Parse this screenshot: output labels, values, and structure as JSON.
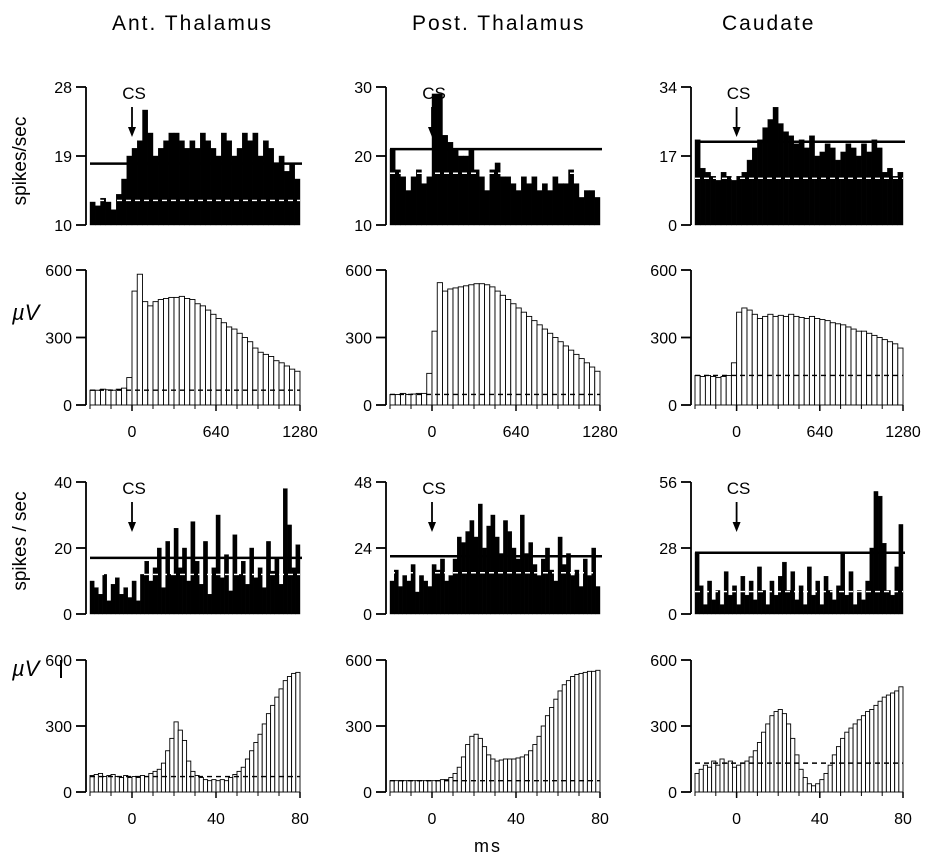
{
  "column_titles": [
    "Ant. Thalamus",
    "Post. Thalamus",
    "Caudate"
  ],
  "row_labels": {
    "spikes": "spikes/sec",
    "spikes2": "spikes / sec",
    "uv": "µV"
  },
  "x_label": "ms",
  "cs_label": "CS",
  "chart_data": [
    {
      "type": "bar",
      "style": "filled",
      "column": "Ant. Thalamus",
      "row": 1,
      "ylabel": "spikes/sec",
      "ylim": [
        10,
        28
      ],
      "yticks": [
        "28",
        "19",
        "10"
      ],
      "xlim": [
        -320,
        1280
      ],
      "xticks": [],
      "cs_at": 0,
      "baseline_solid": 18,
      "baseline_dashed": 13.2,
      "x": [
        -280,
        -240,
        -200,
        -160,
        -120,
        -80,
        -40,
        0,
        40,
        80,
        120,
        160,
        200,
        240,
        280,
        320,
        360,
        400,
        440,
        480,
        520,
        560,
        600,
        640,
        680,
        720,
        760,
        800,
        840,
        880,
        920,
        960,
        1000,
        1040,
        1080,
        1120,
        1160,
        1200,
        1240,
        1280
      ],
      "values": [
        13,
        12.5,
        13.5,
        13,
        12,
        14,
        16,
        19,
        20,
        21,
        25,
        22,
        19,
        20,
        21,
        22,
        22,
        21,
        20,
        21,
        20,
        22,
        21,
        20,
        19,
        22,
        21,
        19,
        20,
        22,
        21,
        22,
        19,
        21,
        20,
        18,
        19,
        17,
        18,
        16
      ]
    },
    {
      "type": "bar",
      "style": "outline",
      "column": "Ant. Thalamus",
      "row": 2,
      "ylabel": "µV",
      "ylim": [
        0,
        640
      ],
      "yticks": [
        "600",
        "300",
        "0"
      ],
      "xlim": [
        -320,
        1280
      ],
      "xticks": [
        "0",
        "640",
        "1280"
      ],
      "baseline_dashed": 70,
      "x": [
        -280,
        -240,
        -200,
        -160,
        -120,
        -80,
        -40,
        0,
        40,
        80,
        120,
        160,
        200,
        240,
        280,
        320,
        360,
        400,
        440,
        480,
        520,
        560,
        600,
        640,
        680,
        720,
        760,
        800,
        840,
        880,
        920,
        960,
        1000,
        1040,
        1080,
        1120,
        1160,
        1200,
        1240,
        1280
      ],
      "values": [
        70,
        70,
        75,
        72,
        70,
        75,
        80,
        130,
        540,
        620,
        490,
        470,
        490,
        500,
        505,
        510,
        510,
        515,
        505,
        500,
        480,
        470,
        450,
        430,
        410,
        390,
        370,
        360,
        340,
        320,
        300,
        270,
        250,
        240,
        230,
        210,
        200,
        185,
        170,
        160
      ]
    },
    {
      "type": "bar",
      "style": "filled",
      "column": "Post. Thalamus",
      "row": 1,
      "ylabel": "",
      "ylim": [
        10,
        30
      ],
      "yticks": [
        "30",
        "20",
        "10"
      ],
      "xlim": [
        -320,
        1280
      ],
      "xticks": [],
      "cs_at": 0,
      "baseline_solid": 21,
      "baseline_dashed": 17.5,
      "x": [
        -280,
        -240,
        -200,
        -160,
        -120,
        -80,
        -40,
        0,
        40,
        80,
        120,
        160,
        200,
        240,
        280,
        320,
        360,
        400,
        440,
        480,
        520,
        560,
        600,
        640,
        680,
        720,
        760,
        800,
        840,
        880,
        920,
        960,
        1000,
        1040,
        1080,
        1120,
        1160,
        1200,
        1240,
        1280
      ],
      "values": [
        21,
        18,
        17,
        15,
        17,
        18,
        16,
        17,
        29,
        29,
        23,
        22,
        21,
        20,
        20,
        21,
        18,
        17,
        15,
        18,
        19,
        17,
        17,
        16,
        15,
        17,
        16,
        17,
        15,
        16,
        15,
        17,
        16,
        16,
        18,
        16,
        14,
        15,
        15,
        14
      ]
    },
    {
      "type": "bar",
      "style": "outline",
      "column": "Post. Thalamus",
      "row": 2,
      "ylabel": "",
      "ylim": [
        0,
        640
      ],
      "yticks": [
        "600",
        "300",
        "0"
      ],
      "xlim": [
        -320,
        1280
      ],
      "xticks": [
        "0",
        "640",
        "1280"
      ],
      "baseline_dashed": 50,
      "x": [
        -280,
        -240,
        -200,
        -160,
        -120,
        -80,
        -40,
        0,
        40,
        80,
        120,
        160,
        200,
        240,
        280,
        320,
        360,
        400,
        440,
        480,
        520,
        560,
        600,
        640,
        680,
        720,
        760,
        800,
        840,
        880,
        920,
        960,
        1000,
        1040,
        1080,
        1120,
        1160,
        1200,
        1240,
        1280
      ],
      "values": [
        50,
        50,
        55,
        50,
        52,
        55,
        55,
        150,
        350,
        580,
        540,
        550,
        555,
        560,
        565,
        570,
        575,
        575,
        570,
        560,
        540,
        520,
        500,
        480,
        460,
        440,
        420,
        400,
        380,
        360,
        340,
        320,
        300,
        280,
        260,
        240,
        220,
        200,
        180,
        160
      ]
    },
    {
      "type": "bar",
      "style": "filled",
      "column": "Caudate",
      "row": 1,
      "ylabel": "",
      "ylim": [
        0,
        34
      ],
      "yticks": [
        "34",
        "17",
        "0"
      ],
      "xlim": [
        -320,
        1280
      ],
      "xticks": [],
      "cs_at": 0,
      "baseline_solid": 20.5,
      "baseline_dashed": 11.5,
      "x": [
        -280,
        -240,
        -200,
        -160,
        -120,
        -80,
        -40,
        0,
        40,
        80,
        120,
        160,
        200,
        240,
        280,
        320,
        360,
        400,
        440,
        480,
        520,
        560,
        600,
        640,
        680,
        720,
        760,
        800,
        840,
        880,
        920,
        960,
        1000,
        1040,
        1080,
        1120,
        1160,
        1200,
        1240,
        1280
      ],
      "values": [
        21,
        14,
        13,
        12,
        11,
        13,
        12,
        11,
        12,
        13,
        16,
        19,
        21,
        24,
        26,
        29,
        25,
        23,
        22,
        20,
        21,
        19,
        22,
        17,
        18,
        20,
        19,
        16,
        18,
        20,
        19,
        17,
        20,
        18,
        21,
        19,
        13,
        14,
        12,
        13
      ]
    },
    {
      "type": "bar",
      "style": "outline",
      "column": "Caudate",
      "row": 2,
      "ylabel": "",
      "ylim": [
        0,
        640
      ],
      "yticks": [
        "600",
        "300",
        "0"
      ],
      "xlim": [
        -320,
        1280
      ],
      "xticks": [
        "0",
        "640",
        "1280"
      ],
      "baseline_dashed": 140,
      "x": [
        -280,
        -240,
        -200,
        -160,
        -120,
        -80,
        -40,
        0,
        40,
        80,
        120,
        160,
        200,
        240,
        280,
        320,
        360,
        400,
        440,
        480,
        520,
        560,
        600,
        640,
        680,
        720,
        760,
        800,
        840,
        880,
        920,
        960,
        1000,
        1040,
        1080,
        1120,
        1160,
        1200,
        1240,
        1280
      ],
      "values": [
        140,
        135,
        140,
        135,
        130,
        135,
        140,
        200,
        440,
        460,
        450,
        430,
        410,
        420,
        430,
        420,
        425,
        420,
        430,
        420,
        415,
        410,
        420,
        410,
        405,
        400,
        390,
        385,
        380,
        370,
        360,
        350,
        350,
        340,
        330,
        320,
        310,
        300,
        290,
        270
      ]
    },
    {
      "type": "bar",
      "style": "filled",
      "column": "Ant. Thalamus",
      "row": 3,
      "ylabel": "spikes / sec",
      "ylim": [
        0,
        40
      ],
      "yticks": [
        "40",
        "20",
        "0"
      ],
      "xlim": [
        -20,
        80
      ],
      "xticks": [],
      "cs_at": 0,
      "baseline_solid": 17,
      "baseline_dashed": 12,
      "x": [
        -19,
        -17,
        -15,
        -13,
        -11,
        -9,
        -7,
        -5,
        -3,
        -1,
        1,
        3,
        5,
        7,
        9,
        11,
        13,
        15,
        17,
        19,
        21,
        23,
        25,
        27,
        29,
        31,
        33,
        35,
        37,
        39,
        41,
        43,
        45,
        47,
        49,
        51,
        53,
        55,
        57,
        59,
        61,
        63,
        65,
        67,
        69,
        71,
        73,
        75,
        77,
        79
      ],
      "values": [
        10,
        8,
        6,
        12,
        4,
        9,
        11,
        6,
        8,
        5,
        10,
        4,
        12,
        16,
        10,
        14,
        20,
        8,
        22,
        12,
        26,
        14,
        20,
        10,
        28,
        16,
        9,
        22,
        6,
        14,
        30,
        11,
        18,
        7,
        24,
        12,
        16,
        9,
        20,
        11,
        14,
        8,
        22,
        13,
        17,
        9,
        38,
        27,
        14,
        21
      ]
    },
    {
      "type": "bar",
      "style": "outline",
      "column": "Ant. Thalamus",
      "row": 4,
      "ylabel": "µV",
      "ylim": [
        0,
        640
      ],
      "yticks": [
        "600",
        "300",
        "0"
      ],
      "xlim": [
        -20,
        80
      ],
      "xticks": [
        "0",
        "40",
        "80"
      ],
      "baseline_dashed": 75,
      "x": [
        -19,
        -17,
        -15,
        -13,
        -11,
        -9,
        -7,
        -5,
        -3,
        -1,
        1,
        3,
        5,
        7,
        9,
        11,
        13,
        15,
        17,
        19,
        21,
        23,
        25,
        27,
        29,
        31,
        33,
        35,
        37,
        39,
        41,
        43,
        45,
        47,
        49,
        51,
        53,
        55,
        57,
        59,
        61,
        63,
        65,
        67,
        69,
        71,
        73,
        75,
        77,
        79
      ],
      "values": [
        80,
        85,
        90,
        75,
        80,
        85,
        75,
        70,
        80,
        70,
        75,
        70,
        80,
        75,
        90,
        100,
        110,
        140,
        200,
        260,
        340,
        300,
        250,
        150,
        100,
        80,
        70,
        60,
        55,
        60,
        55,
        60,
        55,
        70,
        85,
        100,
        120,
        160,
        200,
        240,
        280,
        330,
        380,
        420,
        460,
        500,
        540,
        560,
        575,
        580
      ]
    },
    {
      "type": "bar",
      "style": "filled",
      "column": "Post. Thalamus",
      "row": 3,
      "ylabel": "",
      "ylim": [
        0,
        48
      ],
      "yticks": [
        "48",
        "24",
        "0"
      ],
      "xlim": [
        -20,
        80
      ],
      "xticks": [],
      "cs_at": 0,
      "baseline_solid": 21,
      "baseline_dashed": 15,
      "x": [
        -19,
        -17,
        -15,
        -13,
        -11,
        -9,
        -7,
        -5,
        -3,
        -1,
        1,
        3,
        5,
        7,
        9,
        11,
        13,
        15,
        17,
        19,
        21,
        23,
        25,
        27,
        29,
        31,
        33,
        35,
        37,
        39,
        41,
        43,
        45,
        47,
        49,
        51,
        53,
        55,
        57,
        59,
        61,
        63,
        65,
        67,
        69,
        71,
        73,
        75,
        77,
        79
      ],
      "values": [
        12,
        16,
        10,
        14,
        12,
        18,
        8,
        14,
        12,
        10,
        18,
        16,
        20,
        12,
        14,
        20,
        28,
        26,
        30,
        34,
        28,
        40,
        24,
        32,
        36,
        28,
        22,
        34,
        30,
        24,
        20,
        36,
        22,
        26,
        18,
        14,
        20,
        24,
        16,
        12,
        28,
        18,
        22,
        14,
        16,
        10,
        20,
        14,
        24,
        10
      ]
    },
    {
      "type": "bar",
      "style": "outline",
      "column": "Post. Thalamus",
      "row": 4,
      "ylabel": "",
      "ylim": [
        0,
        640
      ],
      "yticks": [
        "600",
        "300",
        "0"
      ],
      "xlim": [
        -20,
        80
      ],
      "xticks": [
        "0",
        "40",
        "80"
      ],
      "baseline_dashed": 55,
      "x": [
        -19,
        -17,
        -15,
        -13,
        -11,
        -9,
        -7,
        -5,
        -3,
        -1,
        1,
        3,
        5,
        7,
        9,
        11,
        13,
        15,
        17,
        19,
        21,
        23,
        25,
        27,
        29,
        31,
        33,
        35,
        37,
        39,
        41,
        43,
        45,
        47,
        49,
        51,
        53,
        55,
        57,
        59,
        61,
        63,
        65,
        67,
        69,
        71,
        73,
        75,
        77,
        79
      ],
      "values": [
        55,
        55,
        55,
        55,
        55,
        55,
        55,
        55,
        55,
        55,
        55,
        55,
        60,
        60,
        70,
        90,
        120,
        170,
        230,
        270,
        280,
        260,
        220,
        180,
        160,
        150,
        155,
        160,
        160,
        160,
        165,
        170,
        180,
        200,
        230,
        270,
        320,
        370,
        410,
        450,
        490,
        520,
        540,
        560,
        570,
        575,
        580,
        585,
        585,
        590
      ]
    },
    {
      "type": "bar",
      "style": "filled",
      "column": "Caudate",
      "row": 3,
      "ylabel": "",
      "ylim": [
        0,
        56
      ],
      "yticks": [
        "56",
        "28",
        "0"
      ],
      "xlim": [
        -20,
        80
      ],
      "xticks": [],
      "cs_at": 0,
      "baseline_solid": 26,
      "baseline_dashed": 9.5,
      "x": [
        -19,
        -17,
        -15,
        -13,
        -11,
        -9,
        -7,
        -5,
        -3,
        -1,
        1,
        3,
        5,
        7,
        9,
        11,
        13,
        15,
        17,
        19,
        21,
        23,
        25,
        27,
        29,
        31,
        33,
        35,
        37,
        39,
        41,
        43,
        45,
        47,
        49,
        51,
        53,
        55,
        57,
        59,
        61,
        63,
        65,
        67,
        69,
        71,
        73,
        75,
        77,
        79
      ],
      "values": [
        26,
        12,
        4,
        14,
        6,
        10,
        4,
        18,
        8,
        12,
        4,
        16,
        8,
        14,
        6,
        20,
        10,
        4,
        14,
        8,
        16,
        22,
        10,
        18,
        6,
        12,
        4,
        20,
        8,
        14,
        4,
        16,
        10,
        6,
        12,
        26,
        8,
        18,
        4,
        10,
        6,
        14,
        28,
        52,
        50,
        30,
        10,
        8,
        20,
        38
      ]
    },
    {
      "type": "bar",
      "style": "outline",
      "column": "Caudate",
      "row": 4,
      "ylabel": "",
      "ylim": [
        0,
        640
      ],
      "yticks": [
        "600",
        "300",
        "0"
      ],
      "xlim": [
        -20,
        80
      ],
      "xticks": [
        "0",
        "40",
        "80"
      ],
      "baseline_dashed": 140,
      "x": [
        -19,
        -17,
        -15,
        -13,
        -11,
        -9,
        -7,
        -5,
        -3,
        -1,
        1,
        3,
        5,
        7,
        9,
        11,
        13,
        15,
        17,
        19,
        21,
        23,
        25,
        27,
        29,
        31,
        33,
        35,
        37,
        39,
        41,
        43,
        45,
        47,
        49,
        51,
        53,
        55,
        57,
        59,
        61,
        63,
        65,
        67,
        69,
        71,
        73,
        75,
        77,
        79
      ],
      "values": [
        90,
        110,
        130,
        120,
        150,
        130,
        160,
        140,
        150,
        120,
        130,
        140,
        150,
        170,
        200,
        240,
        290,
        330,
        370,
        390,
        400,
        380,
        330,
        260,
        180,
        110,
        70,
        40,
        30,
        40,
        60,
        90,
        130,
        180,
        220,
        260,
        290,
        310,
        330,
        350,
        370,
        390,
        400,
        420,
        440,
        460,
        470,
        480,
        490,
        510
      ]
    }
  ]
}
